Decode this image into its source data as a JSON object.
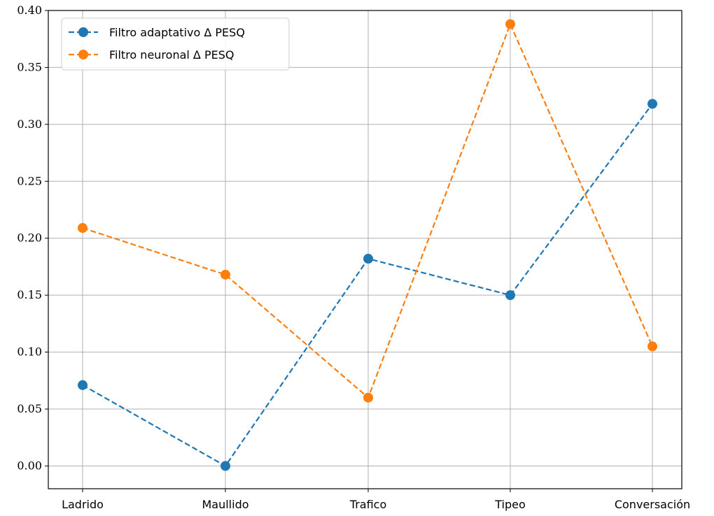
{
  "chart_data": {
    "type": "line",
    "categories": [
      "Ladrido",
      "Maullido",
      "Trafico",
      "Tipeo",
      "Conversación"
    ],
    "series": [
      {
        "name": "Filtro adaptativo Δ PESQ",
        "values": [
          0.071,
          0.0,
          0.182,
          0.15,
          0.318
        ],
        "color": "#1f77b4",
        "line_style": "dashed",
        "marker": "circle"
      },
      {
        "name": "Filtro neuronal Δ PESQ",
        "values": [
          0.209,
          0.168,
          0.06,
          0.388,
          0.105
        ],
        "color": "#ff7f0e",
        "line_style": "dashed",
        "marker": "circle"
      }
    ],
    "ylim": [
      -0.02,
      0.4
    ],
    "yticks": [
      "0.00",
      "0.05",
      "0.10",
      "0.15",
      "0.20",
      "0.25",
      "0.30",
      "0.35",
      "0.40"
    ],
    "grid": true,
    "legend_position": "top-left"
  }
}
